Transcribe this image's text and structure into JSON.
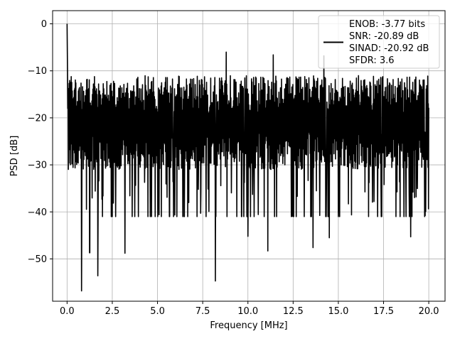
{
  "chart_data": {
    "type": "line",
    "xlabel": "Frequency [MHz]",
    "ylabel": "PSD [dB]",
    "xlim": [
      -0.8,
      20.9
    ],
    "ylim": [
      -59.0,
      2.8
    ],
    "x_ticks": [
      0.0,
      2.5,
      5.0,
      7.5,
      10.0,
      12.5,
      15.0,
      17.5,
      20.0
    ],
    "x_tick_labels": [
      "0.0",
      "2.5",
      "5.0",
      "7.5",
      "10.0",
      "12.5",
      "15.0",
      "17.5",
      "20.0"
    ],
    "y_ticks": [
      0,
      -10,
      -20,
      -30,
      -40,
      -50
    ],
    "y_tick_labels": [
      "0",
      "−10",
      "−20",
      "−30",
      "−40",
      "−50"
    ],
    "grid": true,
    "legend_position": "top-right",
    "line_color": "#000000",
    "series": [
      {
        "name": "ENOB: -3.77 bits\nSNR: -20.89 dB\nSINAD: -20.92 dB\nSFDR: 3.6",
        "description": "noisy power spectral density with a peak at DC",
        "peak": {
          "x": 0.0,
          "y": 0.0
        },
        "noise_floor_median": -21,
        "noise_upper_envelope": -12,
        "notable_minima": [
          {
            "x": 0.8,
            "y": -56.8
          },
          {
            "x": 1.25,
            "y": -48.7
          },
          {
            "x": 1.7,
            "y": -53.6
          },
          {
            "x": 3.2,
            "y": -48.8
          },
          {
            "x": 8.2,
            "y": -54.7
          },
          {
            "x": 10.0,
            "y": -45.2
          },
          {
            "x": 11.1,
            "y": -48.3
          },
          {
            "x": 13.6,
            "y": -47.6
          },
          {
            "x": 14.5,
            "y": -45.5
          },
          {
            "x": 19.0,
            "y": -45.3
          }
        ],
        "notable_maxima": [
          {
            "x": 8.8,
            "y": -6.0
          },
          {
            "x": 11.4,
            "y": -6.6
          },
          {
            "x": 14.2,
            "y": -6.8
          }
        ]
      }
    ]
  }
}
